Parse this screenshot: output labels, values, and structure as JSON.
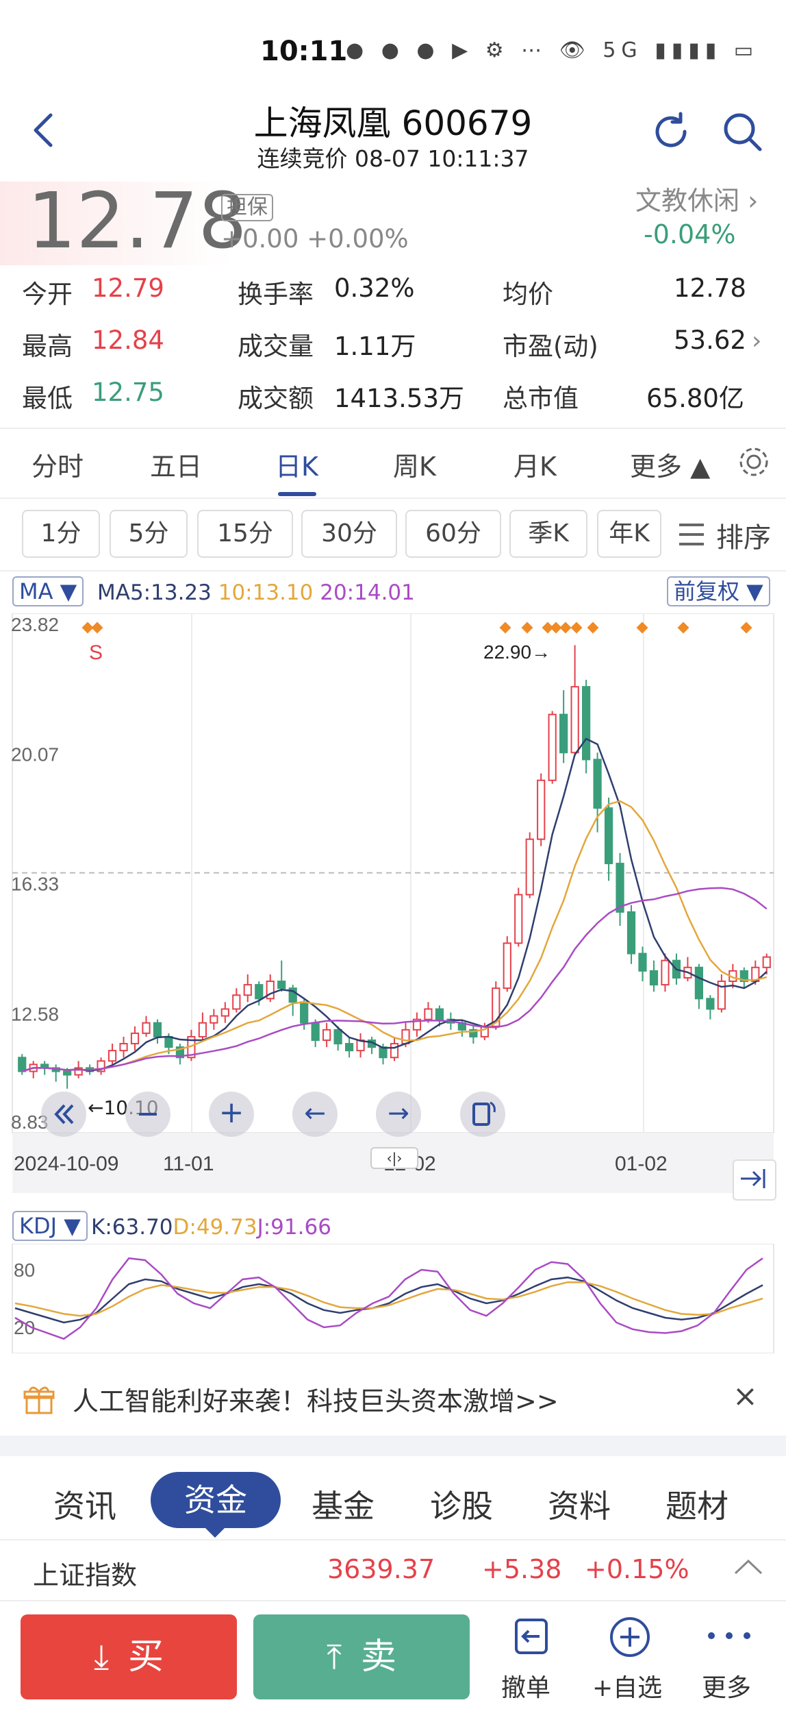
{
  "status": {
    "time": "10:11",
    "icons": "● ● ● ▶ ⚙ ⋯  👁  5G ▮▮▮▮  ▭"
  },
  "header": {
    "title": "上海凤凰 600679",
    "subtitle": "连续竞价 08-07 10:11:37"
  },
  "quote": {
    "price": "12.78",
    "badge": "担保",
    "change": "+0.00 +0.00%",
    "industry": "文教休闲 ›",
    "industry_pct": "-0.04%"
  },
  "stats": [
    {
      "label": "今开",
      "value": "12.79",
      "color": "red"
    },
    {
      "label": "最高",
      "value": "12.84",
      "color": "red"
    },
    {
      "label": "最低",
      "value": "12.75",
      "color": "green"
    },
    {
      "label": "换手率",
      "value": "0.32%"
    },
    {
      "label": "成交量",
      "value": "1.11万"
    },
    {
      "label": "成交额",
      "value": "1413.53万"
    },
    {
      "label": "均价",
      "value": "12.78"
    },
    {
      "label": "市盈(动)",
      "value": "53.62"
    },
    {
      "label": "总市值",
      "value": "65.80亿"
    }
  ],
  "tabs": [
    "分时",
    "五日",
    "日K",
    "周K",
    "月K",
    "更多 ▲"
  ],
  "periods": [
    "1分",
    "5分",
    "15分",
    "30分",
    "60分",
    "季K",
    "年K",
    "排序"
  ],
  "ma_bar": {
    "select": "MA ▼",
    "ma5": "MA5:13.23",
    "ma10": "10:13.10",
    "ma20": "20:14.01",
    "fq": "前复权 ▼"
  },
  "kdj_bar": {
    "select": "KDJ ▼",
    "k": "K:63.70",
    "d": "D:49.73",
    "j": "J:91.66"
  },
  "colors": {
    "up": "#e5414a",
    "down": "#3a9e7a",
    "ma5": "#2f3e6e",
    "ma10": "#e3a73b",
    "ma20": "#a94bc4",
    "brand": "#2f4d9c"
  },
  "chart_data": {
    "type": "candlestick",
    "y_ticks": [
      "23.82",
      "20.07",
      "16.33",
      "12.58",
      "8.83"
    ],
    "ylim": [
      8.83,
      23.82
    ],
    "x_ticks": [
      "2024-10-09",
      "11-01",
      "12-02",
      "01-02"
    ],
    "annotations": {
      "high": "22.90→",
      "low": "←10.10",
      "signal": "S"
    },
    "candles": [
      [
        11.0,
        10.6,
        11.1,
        10.5
      ],
      [
        10.6,
        10.8,
        10.9,
        10.4
      ],
      [
        10.8,
        10.7,
        10.9,
        10.5
      ],
      [
        10.7,
        10.6,
        10.8,
        10.3
      ],
      [
        10.6,
        10.5,
        10.7,
        10.1
      ],
      [
        10.5,
        10.7,
        10.9,
        10.4
      ],
      [
        10.7,
        10.6,
        10.8,
        10.5
      ],
      [
        10.6,
        10.9,
        11.0,
        10.5
      ],
      [
        10.9,
        11.2,
        11.4,
        10.8
      ],
      [
        11.2,
        11.4,
        11.6,
        11.0
      ],
      [
        11.4,
        11.7,
        11.9,
        11.2
      ],
      [
        11.7,
        12.0,
        12.2,
        11.6
      ],
      [
        12.0,
        11.6,
        12.1,
        11.4
      ],
      [
        11.6,
        11.3,
        11.7,
        11.1
      ],
      [
        11.3,
        11.0,
        11.4,
        10.8
      ],
      [
        11.0,
        11.6,
        11.8,
        10.9
      ],
      [
        11.6,
        12.0,
        12.3,
        11.5
      ],
      [
        12.0,
        12.2,
        12.4,
        11.8
      ],
      [
        12.2,
        12.4,
        12.6,
        12.0
      ],
      [
        12.4,
        12.8,
        13.0,
        12.3
      ],
      [
        12.8,
        13.1,
        13.4,
        12.6
      ],
      [
        13.1,
        12.7,
        13.2,
        12.5
      ],
      [
        12.7,
        13.2,
        13.4,
        12.6
      ],
      [
        13.2,
        13.0,
        13.8,
        12.9
      ],
      [
        13.0,
        12.6,
        13.1,
        12.2
      ],
      [
        12.6,
        12.0,
        12.7,
        11.8
      ],
      [
        12.0,
        11.5,
        12.1,
        11.3
      ],
      [
        11.5,
        11.8,
        12.0,
        11.3
      ],
      [
        11.8,
        11.4,
        11.9,
        11.2
      ],
      [
        11.4,
        11.2,
        11.6,
        11.0
      ],
      [
        11.2,
        11.5,
        11.7,
        11.0
      ],
      [
        11.5,
        11.3,
        11.6,
        11.1
      ],
      [
        11.3,
        11.0,
        11.4,
        10.8
      ],
      [
        11.0,
        11.4,
        11.6,
        10.9
      ],
      [
        11.4,
        11.8,
        12.0,
        11.3
      ],
      [
        11.8,
        12.1,
        12.3,
        11.6
      ],
      [
        12.1,
        12.4,
        12.6,
        12.0
      ],
      [
        12.4,
        12.1,
        12.5,
        11.9
      ],
      [
        12.1,
        12.0,
        12.3,
        11.8
      ],
      [
        12.0,
        11.8,
        12.1,
        11.6
      ],
      [
        11.8,
        11.6,
        11.9,
        11.4
      ],
      [
        11.6,
        11.9,
        12.0,
        11.5
      ],
      [
        11.9,
        13.0,
        13.2,
        11.8
      ],
      [
        13.0,
        14.3,
        14.5,
        12.9
      ],
      [
        14.3,
        15.7,
        15.9,
        14.2
      ],
      [
        15.7,
        17.3,
        17.5,
        15.6
      ],
      [
        17.3,
        19.0,
        19.2,
        17.1
      ],
      [
        19.0,
        20.9,
        21.0,
        18.9
      ],
      [
        20.9,
        19.8,
        21.6,
        19.5
      ],
      [
        19.8,
        21.7,
        22.9,
        19.7
      ],
      [
        21.7,
        19.6,
        21.9,
        19.2
      ],
      [
        19.6,
        18.2,
        19.8,
        17.5
      ],
      [
        18.2,
        16.6,
        18.5,
        16.1
      ],
      [
        16.6,
        15.2,
        16.9,
        14.8
      ],
      [
        15.2,
        14.0,
        15.4,
        13.7
      ],
      [
        14.0,
        13.5,
        14.2,
        13.2
      ],
      [
        13.5,
        13.1,
        13.8,
        12.9
      ],
      [
        13.1,
        13.8,
        14.0,
        12.9
      ],
      [
        13.8,
        13.3,
        14.0,
        13.1
      ],
      [
        13.3,
        13.6,
        13.9,
        13.2
      ],
      [
        13.6,
        12.7,
        13.7,
        12.4
      ],
      [
        12.7,
        12.4,
        12.8,
        12.1
      ],
      [
        12.4,
        13.2,
        13.4,
        12.3
      ],
      [
        13.2,
        13.5,
        13.7,
        13.0
      ],
      [
        13.5,
        13.2,
        13.6,
        13.0
      ],
      [
        13.2,
        13.6,
        13.8,
        13.1
      ],
      [
        13.6,
        13.9,
        14.0,
        13.4
      ]
    ],
    "kdj": {
      "ylim": [
        0,
        100
      ],
      "y_ticks": [
        "80",
        "20"
      ],
      "k": [
        40,
        35,
        30,
        25,
        28,
        35,
        50,
        65,
        70,
        68,
        60,
        55,
        50,
        55,
        62,
        65,
        62,
        55,
        45,
        38,
        35,
        38,
        40,
        45,
        55,
        62,
        65,
        58,
        50,
        45,
        48,
        55,
        63,
        70,
        72,
        68,
        58,
        48,
        40,
        35,
        30,
        28,
        30,
        35,
        45,
        55,
        64
      ],
      "d": [
        45,
        42,
        38,
        34,
        32,
        34,
        42,
        52,
        60,
        64,
        62,
        59,
        56,
        56,
        59,
        62,
        62,
        59,
        53,
        46,
        41,
        40,
        40,
        43,
        49,
        55,
        60,
        59,
        55,
        50,
        49,
        52,
        57,
        63,
        67,
        67,
        63,
        57,
        50,
        44,
        38,
        34,
        33,
        34,
        40,
        45,
        50
      ],
      "j": [
        30,
        20,
        14,
        8,
        20,
        40,
        70,
        92,
        90,
        75,
        55,
        45,
        40,
        55,
        70,
        72,
        62,
        45,
        28,
        20,
        22,
        35,
        45,
        52,
        70,
        80,
        78,
        55,
        38,
        32,
        45,
        62,
        80,
        88,
        86,
        70,
        45,
        25,
        18,
        15,
        14,
        16,
        22,
        35,
        58,
        80,
        92
      ]
    }
  },
  "banner": {
    "text": "人工智能利好来袭！科技巨头资本激增>>",
    "close": "×"
  },
  "info_tabs": [
    "资讯",
    "资金",
    "基金",
    "诊股",
    "资料",
    "题材"
  ],
  "index": {
    "name": "上证指数",
    "value": "3639.37",
    "change": "+5.38",
    "pct": "+0.15%"
  },
  "bottom": {
    "buy": "买",
    "sell": "卖",
    "cancel": "撤单",
    "watch": "+自选",
    "more": "更多"
  },
  "chart_tools": {
    "zoom_in": "+",
    "left": "←",
    "right": "→",
    "handle": "‹|›"
  }
}
